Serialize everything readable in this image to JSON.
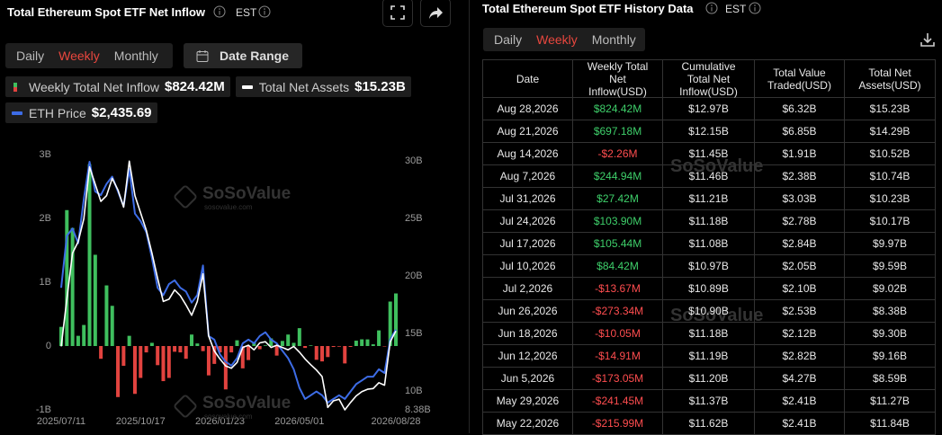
{
  "chart_panel": {
    "title": "Total Ethereum Spot ETF Net Inflow",
    "timezone": "EST",
    "tabs": [
      "Daily",
      "Weekly",
      "Monthly"
    ],
    "active_tab": 1,
    "date_range": "Date Range",
    "watermark": "SoSoValue",
    "watermark_url": "sosovalue.com"
  },
  "chart_data": {
    "type": "bar",
    "categories": [
      "2025/07/11",
      null,
      null,
      null,
      null,
      null,
      null,
      null,
      null,
      null,
      null,
      null,
      null,
      null,
      "2025/10/17",
      null,
      null,
      null,
      null,
      null,
      null,
      null,
      null,
      null,
      null,
      null,
      null,
      null,
      "2026/01/23",
      null,
      null,
      null,
      null,
      null,
      null,
      null,
      null,
      null,
      null,
      null,
      null,
      null,
      "2026/05/01",
      null,
      null,
      null,
      null,
      null,
      null,
      null,
      null,
      null,
      null,
      null,
      null,
      null,
      null,
      null,
      null,
      "2026/08/28"
    ],
    "series": [
      {
        "name": "Weekly Total Net Inflow",
        "value_label": "$824.42M",
        "type": "bar",
        "color": "#3fbf5e",
        "negative_color": "#e2433f",
        "values": [
          0.3,
          2.13,
          1.85,
          0.16,
          0.33,
          2.85,
          1.43,
          -0.2,
          0.95,
          0.63,
          -0.8,
          -0.31,
          0.16,
          -0.75,
          -0.5,
          -0.1,
          0.05,
          -0.3,
          -0.55,
          -0.5,
          -0.09,
          -0.1,
          -0.2,
          0.18,
          0.04,
          -0.08,
          -0.46,
          -0.28,
          -0.1,
          -0.68,
          -0.1,
          0.09,
          -0.35,
          -0.22,
          0.05,
          -0.05,
          0.01,
          0.12,
          -0.15,
          0.08,
          0.18,
          0.05,
          0.28,
          -0.03,
          0.01,
          -0.216,
          -0.241,
          -0.173,
          -0.015,
          -0.01,
          -0.273,
          -0.014,
          0.084,
          0.105,
          0.104,
          0.027,
          0.245,
          -0.002,
          0.697,
          0.824
        ]
      },
      {
        "name": "Total Net Assets",
        "value_label": "$15.23B",
        "type": "line",
        "axis": "y2",
        "color": "#ffffff",
        "values": [
          13.9,
          18,
          22,
          23,
          25,
          29.5,
          28,
          26.5,
          27,
          28.5,
          27.5,
          26,
          30,
          27,
          25.5,
          24,
          22,
          19.8,
          17.8,
          18,
          18.8,
          18.3,
          17.5,
          16.6,
          17.8,
          20.2,
          14.8,
          13.5,
          12.8,
          12.2,
          12,
          12.5,
          13.8,
          14,
          13.6,
          14.2,
          14.3,
          13.8,
          14,
          13.8,
          13.6,
          13.9,
          13.4,
          12.8,
          12.3,
          11.84,
          11.27,
          8.59,
          9.16,
          9.3,
          8.38,
          9.02,
          9.59,
          9.97,
          10.17,
          10.23,
          10.74,
          10.52,
          14.29,
          15.23
        ]
      },
      {
        "name": "ETH Price",
        "value_label": "$2,435.69",
        "type": "line",
        "color": "#3d6ce6",
        "values": [
          3000,
          3700,
          3800,
          3600,
          4200,
          4700,
          4300,
          4250,
          4400,
          4500,
          4300,
          4100,
          4600,
          4000,
          3900,
          3750,
          3400,
          3000,
          2900,
          3050,
          3100,
          3000,
          2950,
          2800,
          2900,
          3300,
          2350,
          2300,
          2100,
          2000,
          1950,
          2050,
          2250,
          2300,
          2250,
          2350,
          2400,
          2300,
          2250,
          2150,
          2050,
          1900,
          1650,
          1500,
          1550,
          1600,
          1550,
          1450,
          1500,
          1550,
          1500,
          1600,
          1700,
          1750,
          1800,
          1800,
          1900,
          1850,
          2300,
          2435.69
        ]
      }
    ],
    "ylim": [
      -1,
      3
    ],
    "yticks": [
      {
        "value": 3,
        "label": "3B"
      },
      {
        "value": 2,
        "label": "2B"
      },
      {
        "value": 1,
        "label": "1B"
      },
      0,
      {
        "value": -1,
        "label": "-1B"
      }
    ],
    "y2lim": [
      8.38,
      30.57
    ],
    "y2ticks": [
      {
        "value": 30,
        "label": "30B"
      },
      {
        "value": 25,
        "label": "25B"
      },
      {
        "value": 20,
        "label": "20B"
      },
      {
        "value": 15,
        "label": "15B"
      },
      {
        "value": 10,
        "label": "10B"
      },
      {
        "value": 8.38,
        "label": "8.38B"
      }
    ],
    "grid": false
  },
  "table_panel": {
    "title": "Total Ethereum Spot ETF History Data",
    "timezone": "EST",
    "tabs": [
      "Daily",
      "Weekly",
      "Monthly"
    ],
    "active_tab": 1,
    "positive_color": "#3ecf6a",
    "negative_color": "#ff4d4f",
    "columns": [
      "Date",
      "Weekly Total Net Inflow(USD)",
      "Cumulative Total Net Inflow(USD)",
      "Total Value Traded(USD)",
      "Total Net Assets(USD)"
    ],
    "rows": [
      [
        "Aug 28,2026",
        "$824.42M",
        "$12.97B",
        "$6.32B",
        "$15.23B"
      ],
      [
        "Aug 21,2026",
        "$697.18M",
        "$12.15B",
        "$6.85B",
        "$14.29B"
      ],
      [
        "Aug 14,2026",
        "-$2.26M",
        "$11.45B",
        "$1.91B",
        "$10.52B"
      ],
      [
        "Aug 7,2026",
        "$244.94M",
        "$11.46B",
        "$2.38B",
        "$10.74B"
      ],
      [
        "Jul 31,2026",
        "$27.42M",
        "$11.21B",
        "$3.03B",
        "$10.23B"
      ],
      [
        "Jul 24,2026",
        "$103.90M",
        "$11.18B",
        "$2.78B",
        "$10.17B"
      ],
      [
        "Jul 17,2026",
        "$105.44M",
        "$11.08B",
        "$2.84B",
        "$9.97B"
      ],
      [
        "Jul 10,2026",
        "$84.42M",
        "$10.97B",
        "$2.05B",
        "$9.59B"
      ],
      [
        "Jul 2,2026",
        "-$13.67M",
        "$10.89B",
        "$2.10B",
        "$9.02B"
      ],
      [
        "Jun 26,2026",
        "-$273.34M",
        "$10.90B",
        "$2.53B",
        "$8.38B"
      ],
      [
        "Jun 18,2026",
        "-$10.05M",
        "$11.18B",
        "$2.12B",
        "$9.30B"
      ],
      [
        "Jun 12,2026",
        "-$14.91M",
        "$11.19B",
        "$2.82B",
        "$9.16B"
      ],
      [
        "Jun 5,2026",
        "-$173.05M",
        "$11.20B",
        "$4.27B",
        "$8.59B"
      ],
      [
        "May 29,2026",
        "-$241.45M",
        "$11.37B",
        "$2.41B",
        "$11.27B"
      ],
      [
        "May 22,2026",
        "-$215.99M",
        "$11.62B",
        "$2.41B",
        "$11.84B"
      ]
    ]
  }
}
